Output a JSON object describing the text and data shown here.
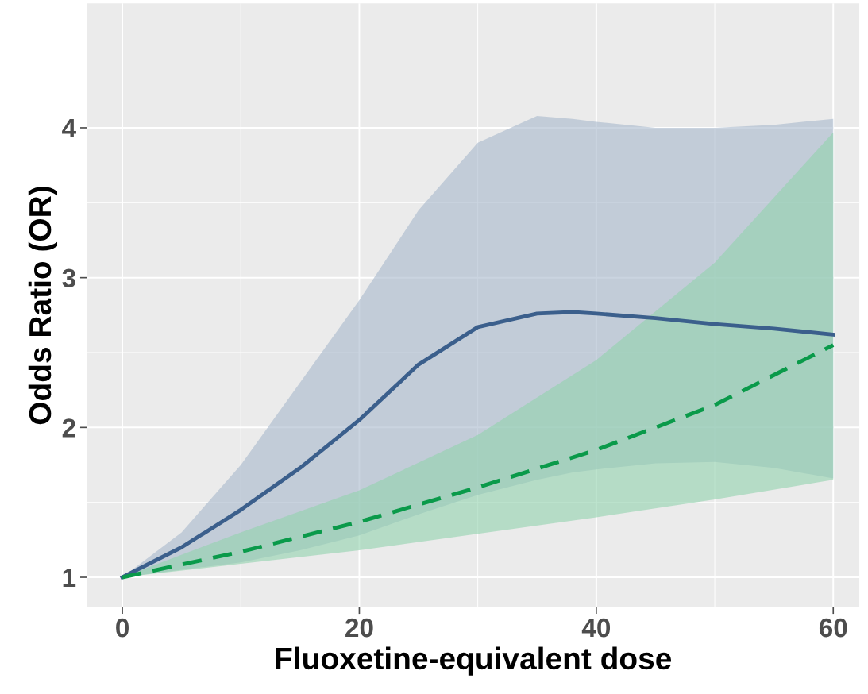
{
  "chart_data": {
    "type": "line",
    "xlabel": "Fluoxetine-equivalent dose",
    "ylabel": "Odds Ratio (OR)",
    "xlim": [
      -3,
      62.2
    ],
    "ylim": [
      0.8,
      4.83
    ],
    "xticks": [
      0,
      20,
      40,
      60
    ],
    "yticks": [
      1,
      2,
      3,
      4
    ],
    "grid": true,
    "series": [
      {
        "color": "#3b5f8c",
        "line_style": "solid",
        "x": [
          0,
          5,
          10,
          15,
          20,
          25,
          30,
          35,
          38,
          40,
          45,
          50,
          55,
          60
        ],
        "values": [
          1,
          1.2,
          1.45,
          1.73,
          2.05,
          2.42,
          2.67,
          2.76,
          2.77,
          2.76,
          2.73,
          2.69,
          2.66,
          2.62
        ],
        "lower": [
          1,
          1.05,
          1.1,
          1.18,
          1.28,
          1.42,
          1.55,
          1.65,
          1.7,
          1.72,
          1.76,
          1.77,
          1.73,
          1.66
        ],
        "upper": [
          1,
          1.3,
          1.75,
          2.3,
          2.85,
          3.45,
          3.9,
          4.08,
          4.06,
          4.04,
          4.0,
          4.0,
          4.02,
          4.06
        ]
      },
      {
        "color": "#0a9a4a",
        "line_style": "dashed",
        "x": [
          0,
          10,
          20,
          30,
          40,
          50,
          60
        ],
        "values": [
          1,
          1.17,
          1.37,
          1.6,
          1.85,
          2.15,
          2.55
        ],
        "lower": [
          1,
          1.09,
          1.18,
          1.29,
          1.4,
          1.52,
          1.65
        ],
        "upper": [
          1,
          1.3,
          1.58,
          1.95,
          2.45,
          3.1,
          3.97
        ]
      }
    ]
  }
}
